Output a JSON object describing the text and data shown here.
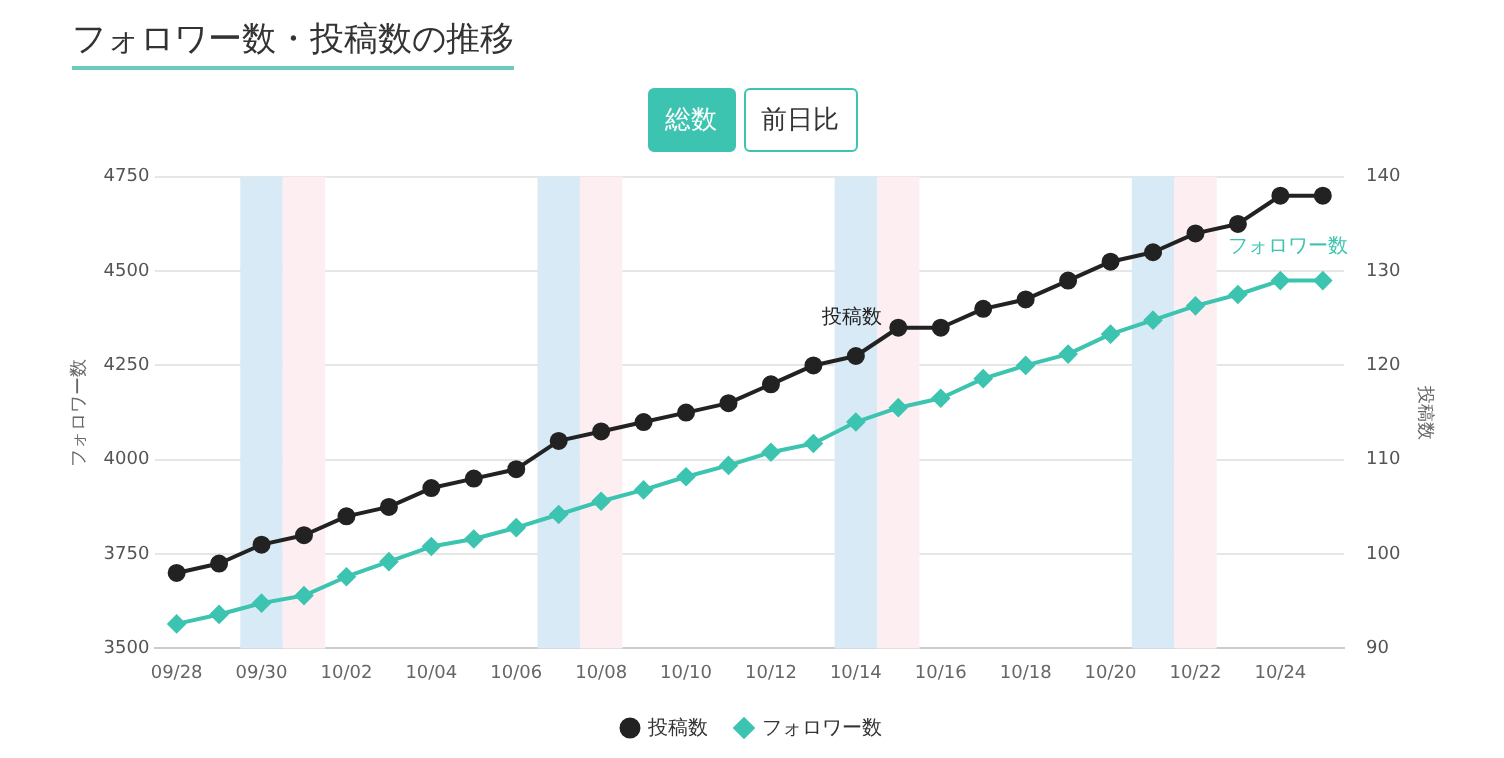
{
  "chart_data": {
    "type": "line",
    "title": "フォロワー数・投稿数の推移",
    "annotations": [
      "総数",
      "前日比"
    ],
    "ylabel": "フォロワー数",
    "y2label": "投稿数",
    "x": [
      "--09-28",
      "--09-29",
      "--09-30",
      "--10-01",
      "--10-02",
      "--10-03",
      "--10-04",
      "--10-05",
      "--10-06",
      "--10-07",
      "--10-08",
      "--10-09",
      "--10-10",
      "--10-11",
      "--10-12",
      "--10-13",
      "--10-14",
      "--10-15",
      "--10-16",
      "--10-17",
      "--10-18",
      "--10-19",
      "--10-20",
      "--10-21",
      "--10-22",
      "--10-23",
      "--10-24",
      "--10-25"
    ],
    "xlim": [
      "--09-27T12:00",
      "--10-25T12:00"
    ],
    "xticks": [
      {
        "value": "--09-28",
        "label": "09/28"
      },
      {
        "value": "--09-30",
        "label": "09/30"
      },
      {
        "value": "--10-02",
        "label": "10/02"
      },
      {
        "value": "--10-04",
        "label": "10/04"
      },
      {
        "value": "--10-06",
        "label": "10/06"
      },
      {
        "value": "--10-08",
        "label": "10/08"
      },
      {
        "value": "--10-10",
        "label": "10/10"
      },
      {
        "value": "--10-12",
        "label": "10/12"
      },
      {
        "value": "--10-14",
        "label": "10/14"
      },
      {
        "value": "--10-16",
        "label": "10/16"
      },
      {
        "value": "--10-18",
        "label": "10/18"
      },
      {
        "value": "--10-20",
        "label": "10/20"
      },
      {
        "value": "--10-22",
        "label": "10/22"
      },
      {
        "value": "--10-24",
        "label": "10/24"
      }
    ],
    "ylim": [
      3500,
      4750
    ],
    "yticks": [
      3500,
      3750,
      4000,
      4250,
      4500,
      4750
    ],
    "y2lim": [
      90,
      140
    ],
    "y2ticks": [
      90,
      100,
      110,
      120,
      130,
      140
    ],
    "series": [
      {
        "name": "投稿数",
        "color": "#222222",
        "axis": "y2",
        "marker": "circle",
        "values": [
          98,
          99,
          101,
          102,
          104,
          105,
          107,
          108,
          109,
          112,
          113,
          114,
          115,
          116,
          118,
          120,
          121,
          124,
          124,
          126,
          127,
          129,
          131,
          132,
          134,
          135,
          138,
          138
        ]
      },
      {
        "name": "フォロワー数",
        "color": "#3cc4b0",
        "axis": "y",
        "marker": "diamond",
        "values": [
          3565,
          3590,
          3620,
          3640,
          3690,
          3730,
          3770,
          3790,
          3820,
          3855,
          3890,
          3920,
          3955,
          3985,
          4020,
          4043,
          4100,
          4138,
          4163,
          4215,
          4250,
          4280,
          4333,
          4370,
          4408,
          4438,
          4475,
          4475
        ]
      }
    ],
    "bands": [
      {
        "axis": "x",
        "from": "--09-29T12:00",
        "to": "--09-30T12:00",
        "color": "#d8eaf5"
      },
      {
        "axis": "x",
        "from": "--09-30T12:00",
        "to": "--10-01T12:00",
        "color": "#fdeef2"
      },
      {
        "axis": "x",
        "from": "--10-06T12:00",
        "to": "--10-07T12:00",
        "color": "#d8eaf5"
      },
      {
        "axis": "x",
        "from": "--10-07T12:00",
        "to": "--10-08T12:00",
        "color": "#fdeef2"
      },
      {
        "axis": "x",
        "from": "--10-13T12:00",
        "to": "--10-14T12:00",
        "color": "#d8eaf5"
      },
      {
        "axis": "x",
        "from": "--10-14T12:00",
        "to": "--10-15T12:00",
        "color": "#fdeef2"
      },
      {
        "axis": "x",
        "from": "--10-20T12:00",
        "to": "--10-21T12:00",
        "color": "#d8eaf5"
      },
      {
        "axis": "x",
        "from": "--10-21T12:00",
        "to": "--10-22T12:00",
        "color": "#fdeef2"
      }
    ],
    "grid": "y",
    "legend": "bottom"
  }
}
